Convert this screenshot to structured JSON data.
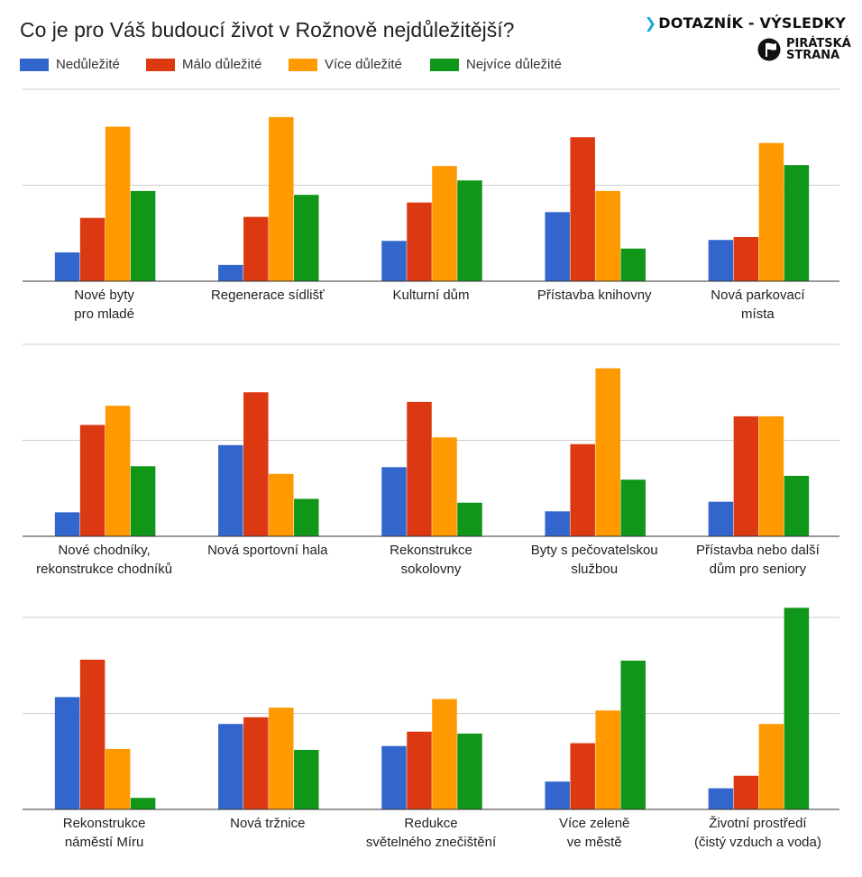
{
  "title": "Co je pro Váš budoucí život v Rožnově nejdůležitější?",
  "brand": {
    "heading": "DOTAZNÍK - VÝSLEDKY",
    "party_line1": "PIRÁTSKÁ",
    "party_line2": "STRANA",
    "arrow_color": "#1aa7d8",
    "logo_icon": "pirate-party-flag-icon"
  },
  "colors": {
    "Nedůležité": "#3366cc",
    "Málo důležité": "#dc3912",
    "Více důležité": "#ff9900",
    "Nejvíce důležité": "#109618"
  },
  "chart_data": {
    "type": "bar",
    "legend_position": "top-left",
    "grid": true,
    "ylim": [
      0,
      200
    ],
    "series": [
      {
        "name": "Nedůležité"
      },
      {
        "name": "Málo důležité"
      },
      {
        "name": "Více důležité"
      },
      {
        "name": "Nejvíce důležité"
      }
    ],
    "panels": [
      {
        "categories": [
          {
            "label": [
              "Nové byty",
              "pro mladé"
            ],
            "values": [
              30,
              66,
              161,
              94
            ]
          },
          {
            "label": [
              "Regenerace sídlišť"
            ],
            "values": [
              17,
              67,
              171,
              90
            ]
          },
          {
            "label": [
              "Kulturní dům"
            ],
            "values": [
              42,
              82,
              120,
              105
            ]
          },
          {
            "label": [
              "Přístavba knihovny"
            ],
            "values": [
              72,
              150,
              94,
              34
            ]
          },
          {
            "label": [
              "Nová parkovací",
              "místa"
            ],
            "values": [
              43,
              46,
              144,
              121
            ]
          }
        ]
      },
      {
        "categories": [
          {
            "label": [
              "Nové chodníky,",
              "rekonstrukce chodníků"
            ],
            "values": [
              25,
              116,
              136,
              73
            ]
          },
          {
            "label": [
              "Nová sportovní hala"
            ],
            "values": [
              95,
              150,
              65,
              39
            ]
          },
          {
            "label": [
              "Rekonstrukce",
              "sokolovny"
            ],
            "values": [
              72,
              140,
              103,
              35
            ]
          },
          {
            "label": [
              "Byty s pečovatelskou",
              "službou"
            ],
            "values": [
              26,
              96,
              175,
              59
            ]
          },
          {
            "label": [
              "Přístavba nebo další",
              "dům pro seniory"
            ],
            "values": [
              36,
              125,
              125,
              63
            ]
          }
        ]
      },
      {
        "categories": [
          {
            "label": [
              "Rekonstrukce",
              "náměstí Míru"
            ],
            "values": [
              117,
              156,
              63,
              12
            ]
          },
          {
            "label": [
              "Nová tržnice"
            ],
            "values": [
              89,
              96,
              106,
              62
            ]
          },
          {
            "label": [
              "Redukce",
              "světelného znečištění"
            ],
            "values": [
              66,
              81,
              115,
              79
            ]
          },
          {
            "label": [
              "Více zeleně",
              "ve městě"
            ],
            "values": [
              29,
              69,
              103,
              155
            ]
          },
          {
            "label": [
              "Životní prostředí",
              "(čistý vzduch a voda)"
            ],
            "values": [
              22,
              35,
              89,
              210
            ]
          }
        ]
      }
    ]
  }
}
